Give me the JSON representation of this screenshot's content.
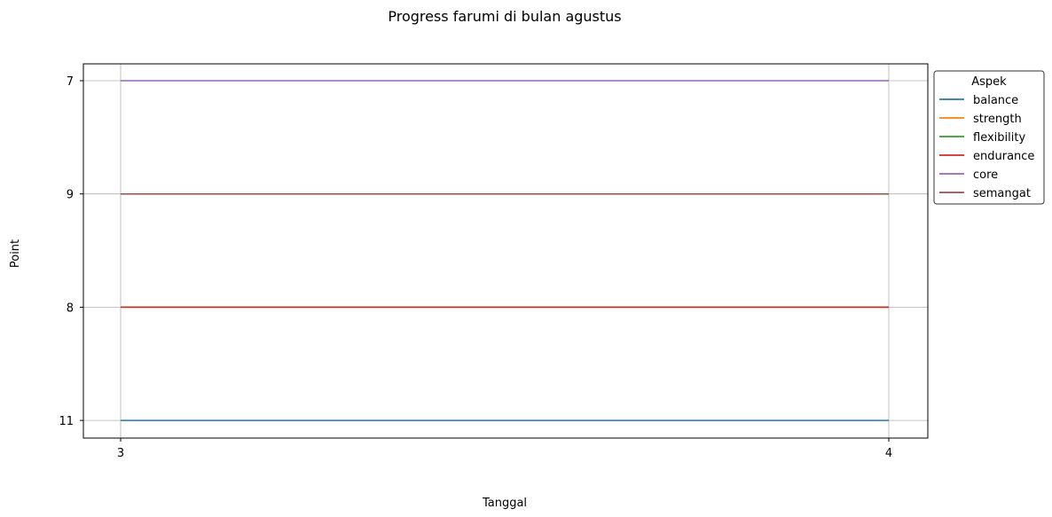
{
  "chart_data": {
    "type": "line",
    "title": "Progress farumi di bulan agustus",
    "xlabel": "Tanggal",
    "ylabel": "Point",
    "x": [
      3,
      4
    ],
    "x_ticks": [
      "3",
      "4"
    ],
    "y_categories_top_to_bottom": [
      "7",
      "9",
      "8",
      "11"
    ],
    "grid": true,
    "legend": {
      "title": "Aspek",
      "placement": "outside-right-top"
    },
    "series": [
      {
        "name": "balance",
        "color": "#1f77b4",
        "values": [
          "11",
          "11"
        ]
      },
      {
        "name": "strength",
        "color": "#ff7f0e",
        "values": [
          "8",
          "8"
        ]
      },
      {
        "name": "flexibility",
        "color": "#2ca02c",
        "values": [
          "8",
          "8"
        ]
      },
      {
        "name": "endurance",
        "color": "#d62728",
        "values": [
          "8",
          "8"
        ]
      },
      {
        "name": "core",
        "color": "#9467bd",
        "values": [
          "7",
          "7"
        ]
      },
      {
        "name": "semangat",
        "color": "#8c564b",
        "values": [
          "9",
          "9"
        ]
      }
    ]
  }
}
